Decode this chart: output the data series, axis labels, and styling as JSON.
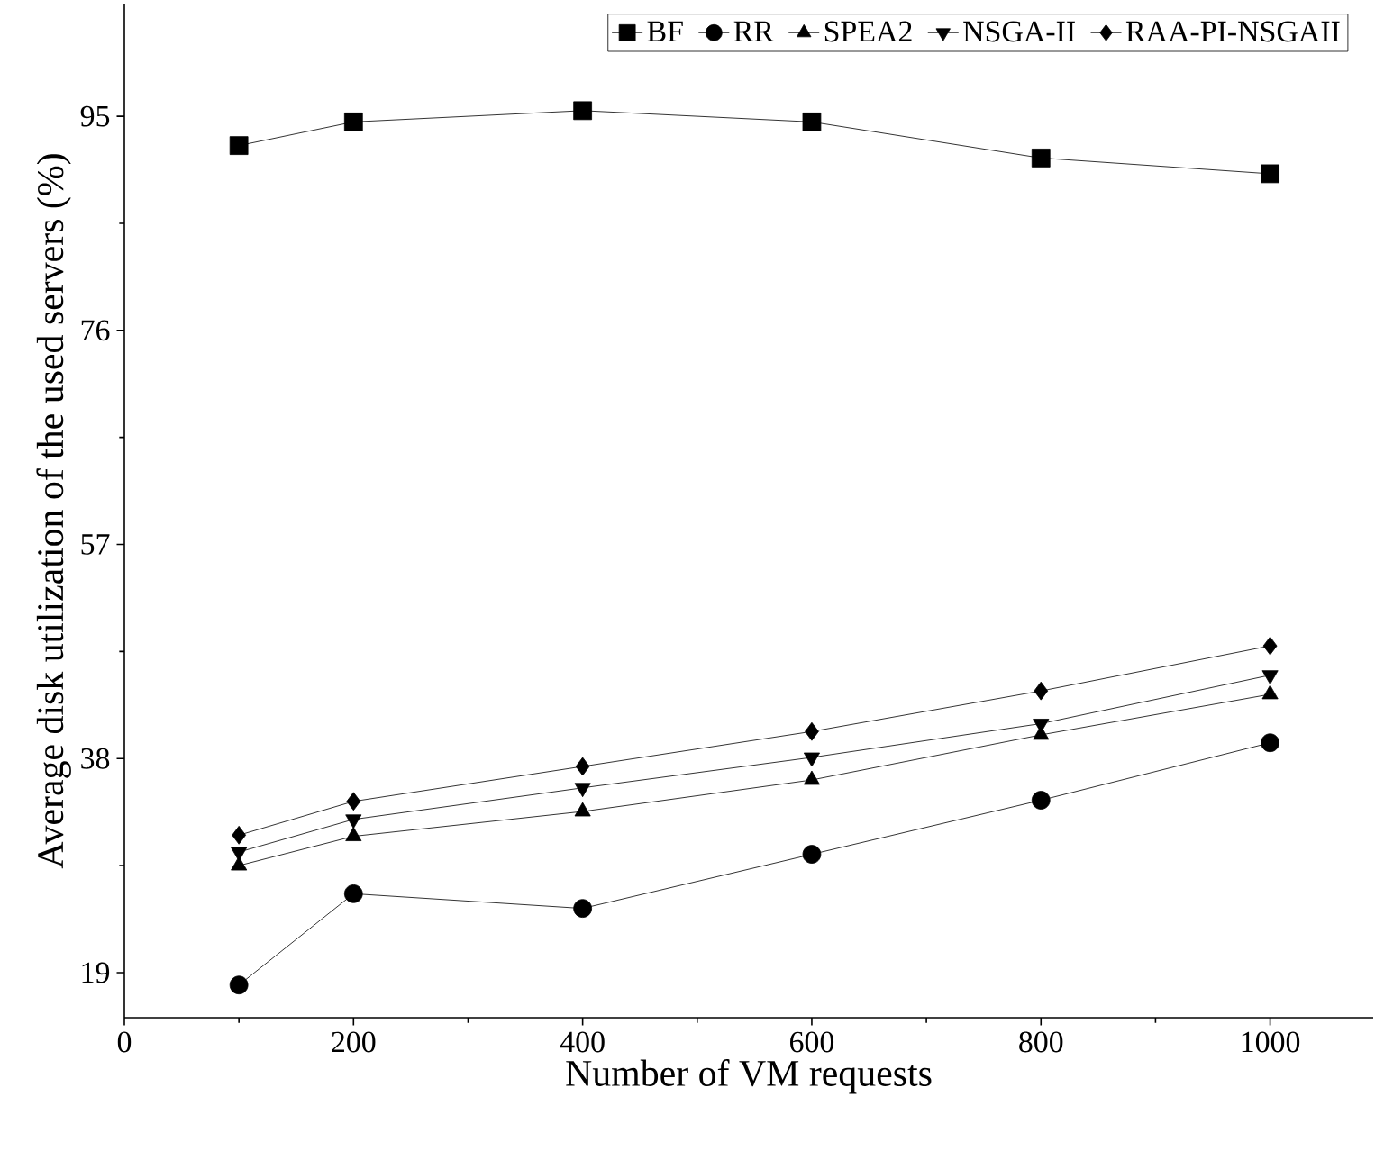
{
  "chart_data": {
    "type": "line",
    "xlabel": "Number of VM requests",
    "ylabel": "Average disk utilization of the used servers (%)",
    "x": [
      100,
      200,
      400,
      600,
      800,
      1000
    ],
    "xlim": [
      0,
      1090
    ],
    "xticks": [
      0,
      200,
      400,
      600,
      800,
      1000
    ],
    "ylim": [
      15,
      105
    ],
    "yticks": [
      19,
      38,
      57,
      76,
      95
    ],
    "legend": "top right",
    "grid": false,
    "line_style": "solid",
    "series": [
      {
        "name": "BF",
        "color": "#000000",
        "marker": "square",
        "values": [
          92.4,
          94.5,
          95.5,
          94.5,
          91.3,
          89.9
        ]
      },
      {
        "name": "RR",
        "color": "#000000",
        "marker": "circle",
        "values": [
          17.9,
          26.0,
          24.7,
          29.5,
          34.3,
          39.4
        ]
      },
      {
        "name": "SPEA2",
        "color": "#000000",
        "marker": "triangle",
        "values": [
          28.5,
          31.1,
          33.3,
          36.1,
          40.1,
          43.7
        ]
      },
      {
        "name": "NSGA-II",
        "color": "#000000",
        "marker": "triangle down",
        "values": [
          29.7,
          32.6,
          35.4,
          38.1,
          41.1,
          45.4
        ]
      },
      {
        "name": "RAA-PI-NSGAII",
        "color": "#000000",
        "marker": "diamond",
        "values": [
          31.2,
          34.2,
          37.3,
          40.4,
          44.0,
          48.0
        ]
      }
    ]
  }
}
